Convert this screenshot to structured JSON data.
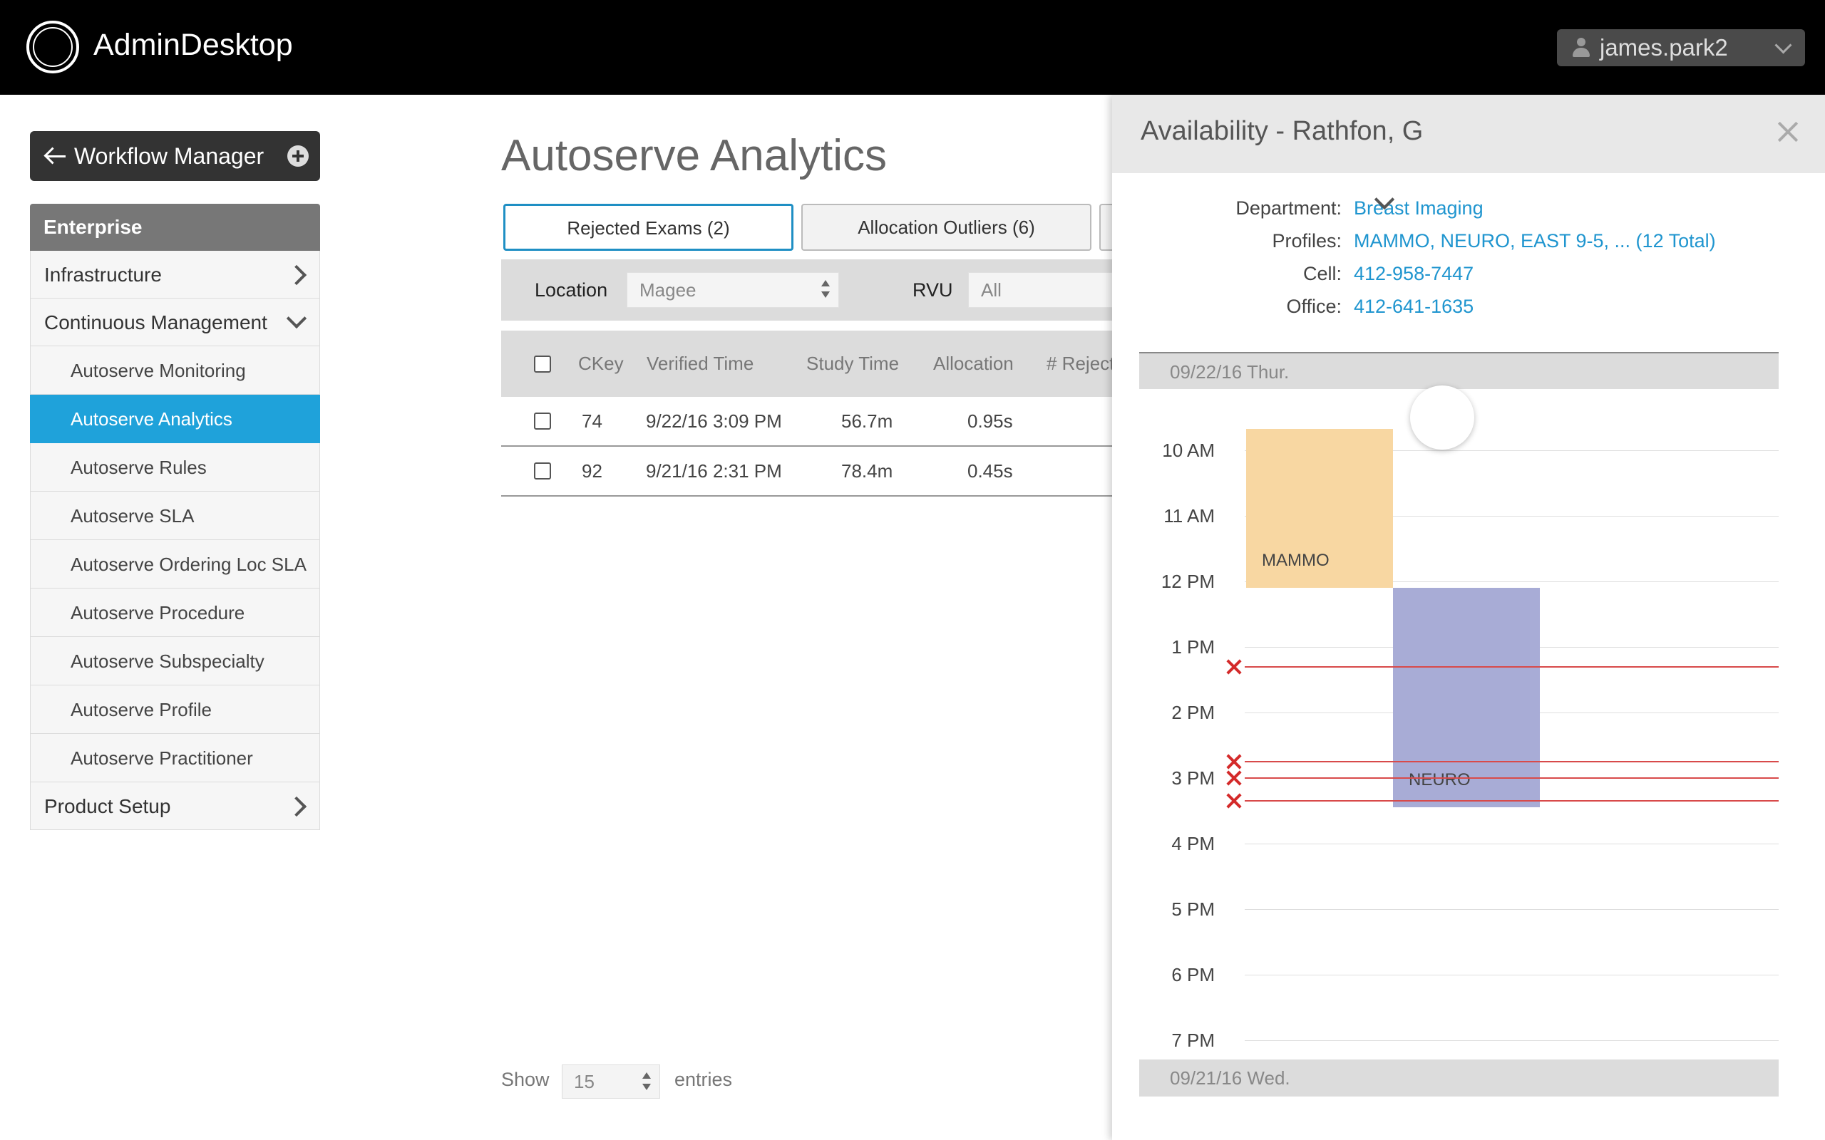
{
  "header": {
    "app_name": "AdminDesktop",
    "user": "james.park2",
    "logo_mark": "GE"
  },
  "sidebar": {
    "back_button": "Workflow Manager",
    "section_head": "Enterprise",
    "items": [
      {
        "label": "Infrastructure"
      },
      {
        "label": "Continuous Management"
      }
    ],
    "subitems": [
      {
        "label": "Autoserve Monitoring"
      },
      {
        "label": "Autoserve Analytics"
      },
      {
        "label": "Autoserve Rules"
      },
      {
        "label": "Autoserve SLA"
      },
      {
        "label": "Autoserve Ordering Loc SLA"
      },
      {
        "label": "Autoserve Procedure"
      },
      {
        "label": "Autoserve Subspecialty"
      },
      {
        "label": "Autoserve Profile"
      },
      {
        "label": "Autoserve Practitioner"
      }
    ],
    "footer_item": "Product Setup"
  },
  "main": {
    "title": "Autoserve Analytics",
    "tabs": [
      {
        "label": "Rejected Exams (2)"
      },
      {
        "label": "Allocation Outliers (6)"
      }
    ],
    "filters": {
      "location_label": "Location",
      "location_value": "Magee",
      "rvu_label": "RVU",
      "rvu_value": "All"
    },
    "table": {
      "columns": [
        "CKey",
        "Verified Time",
        "Study Time",
        "Allocation",
        "# Reject"
      ],
      "rows": [
        {
          "ckey": "74",
          "verified": "9/22/16 3:09 PM",
          "study": "56.7m",
          "allocation": "0.95s"
        },
        {
          "ckey": "92",
          "verified": "9/21/16 2:31 PM",
          "study": "78.4m",
          "allocation": "0.45s"
        }
      ]
    },
    "pager": {
      "show": "Show",
      "value": "15",
      "entries": "entries"
    }
  },
  "panel": {
    "title": "Availability - Rathfon, G",
    "info": {
      "department_label": "Department:",
      "department": "Breast Imaging",
      "profiles_label": "Profiles:",
      "profiles": "MAMMO, NEURO, EAST 9-5, ... (12 Total)",
      "cell_label": "Cell:",
      "cell": "412-958-7447",
      "office_label": "Office:",
      "office": "412-641-1635"
    },
    "date_top": "09/22/16 Thur.",
    "date_bottom": "09/21/16 Wed.",
    "hours": [
      "10 AM",
      "11 AM",
      "12 PM",
      "1 PM",
      "2 PM",
      "3 PM",
      "4 PM",
      "5 PM",
      "6 PM",
      "7 PM"
    ],
    "blocks": [
      {
        "label": "MAMMO",
        "start": 9.67,
        "end": 12.1,
        "color": "#f8d7a2"
      },
      {
        "label": "NEURO",
        "start": 12.1,
        "end": 15.45,
        "color": "#a8acd6"
      }
    ],
    "rejections": [
      13.3,
      14.75,
      15.0,
      15.35
    ]
  }
}
